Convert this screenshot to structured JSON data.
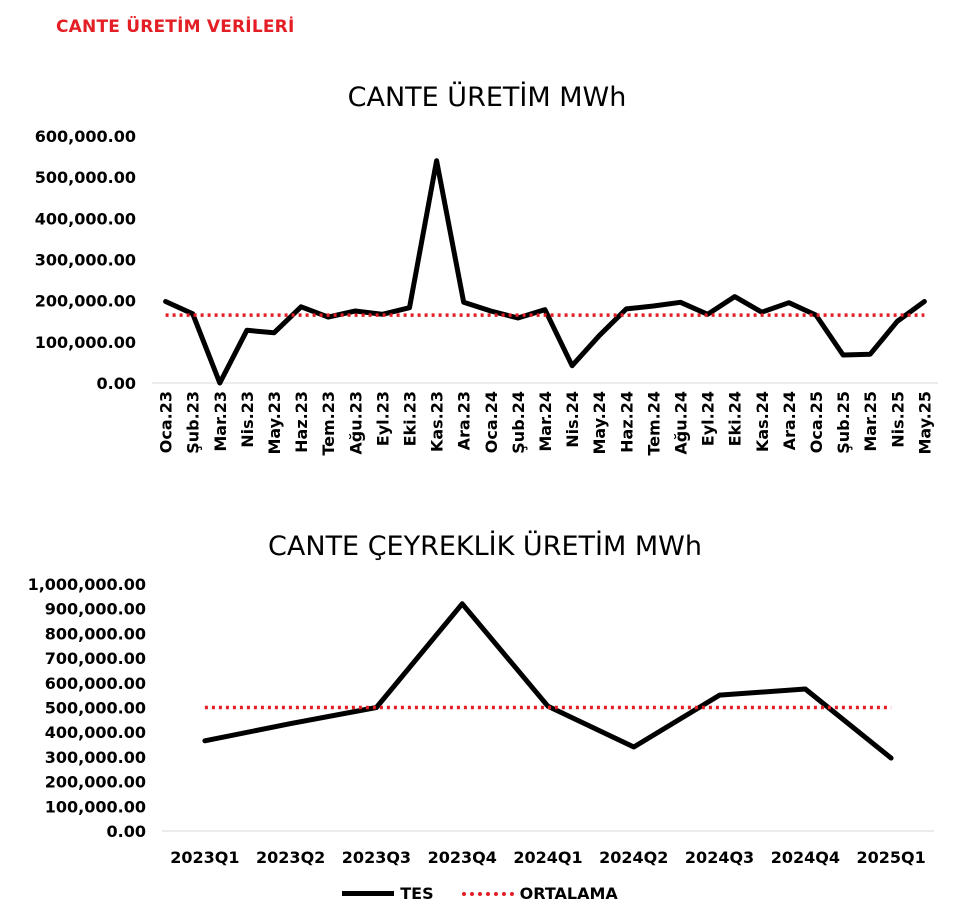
{
  "header": {
    "title": "CANTE ÜRETİM VERİLERİ"
  },
  "colors": {
    "header": "#e31e24",
    "series_line": "#000000",
    "average_line": "#e31e24",
    "axis": "#d9d9d9"
  },
  "legend": {
    "items": [
      {
        "label": "TES",
        "style": "solid"
      },
      {
        "label": "ORTALAMA",
        "style": "dotted"
      }
    ]
  },
  "chart_data": [
    {
      "type": "line",
      "title": "CANTE ÜRETİM MWh",
      "categories": [
        "Oca.23",
        "Şub.23",
        "Mar.23",
        "Nis.23",
        "May.23",
        "Haz.23",
        "Tem.23",
        "Ağu.23",
        "Eyl.23",
        "Eki.23",
        "Kas.23",
        "Ara.23",
        "Oca.24",
        "Şub.24",
        "Mar.24",
        "Nis.24",
        "May.24",
        "Haz.24",
        "Tem.24",
        "Ağu.24",
        "Eyl.24",
        "Eki.24",
        "Kas.24",
        "Ara.24",
        "Oca.25",
        "Şub.25",
        "Mar.25",
        "Nis.25",
        "May.25"
      ],
      "series": [
        {
          "name": "TES",
          "values": [
            198000,
            168000,
            0,
            128000,
            122000,
            185000,
            160000,
            175000,
            167000,
            183000,
            540000,
            196000,
            175000,
            158000,
            178000,
            42000,
            115000,
            180000,
            187000,
            196000,
            167000,
            210000,
            172000,
            195000,
            165000,
            68000,
            70000,
            150000,
            198000
          ]
        },
        {
          "name": "ORTALAMA",
          "values": [
            165000,
            165000,
            165000,
            165000,
            165000,
            165000,
            165000,
            165000,
            165000,
            165000,
            165000,
            165000,
            165000,
            165000,
            165000,
            165000,
            165000,
            165000,
            165000,
            165000,
            165000,
            165000,
            165000,
            165000,
            165000,
            165000,
            165000,
            165000,
            165000
          ]
        }
      ],
      "ylim": [
        0,
        600000
      ],
      "yticks": [
        "0.00",
        "100,000.00",
        "200,000.00",
        "300,000.00",
        "400,000.00",
        "500,000.00",
        "600,000.00"
      ],
      "ytick_values": [
        0,
        100000,
        200000,
        300000,
        400000,
        500000,
        600000
      ],
      "x_label_rotation": "vertical",
      "grid": false
    },
    {
      "type": "line",
      "title": "CANTE ÇEYREKLİK ÜRETİM MWh",
      "categories": [
        "2023Q1",
        "2023Q2",
        "2023Q3",
        "2023Q4",
        "2024Q1",
        "2024Q2",
        "2024Q3",
        "2024Q4",
        "2025Q1"
      ],
      "series": [
        {
          "name": "TES",
          "values": [
            365000,
            435000,
            500000,
            920000,
            505000,
            340000,
            550000,
            575000,
            295000
          ]
        },
        {
          "name": "ORTALAMA",
          "values": [
            500000,
            500000,
            500000,
            500000,
            500000,
            500000,
            500000,
            500000,
            500000
          ]
        }
      ],
      "ylim": [
        0,
        1000000
      ],
      "yticks": [
        "0.00",
        "100,000.00",
        "200,000.00",
        "300,000.00",
        "400,000.00",
        "500,000.00",
        "600,000.00",
        "700,000.00",
        "800,000.00",
        "900,000.00",
        "1,000,000.00"
      ],
      "ytick_values": [
        0,
        100000,
        200000,
        300000,
        400000,
        500000,
        600000,
        700000,
        800000,
        900000,
        1000000
      ],
      "x_label_rotation": "horizontal",
      "grid": false
    }
  ]
}
